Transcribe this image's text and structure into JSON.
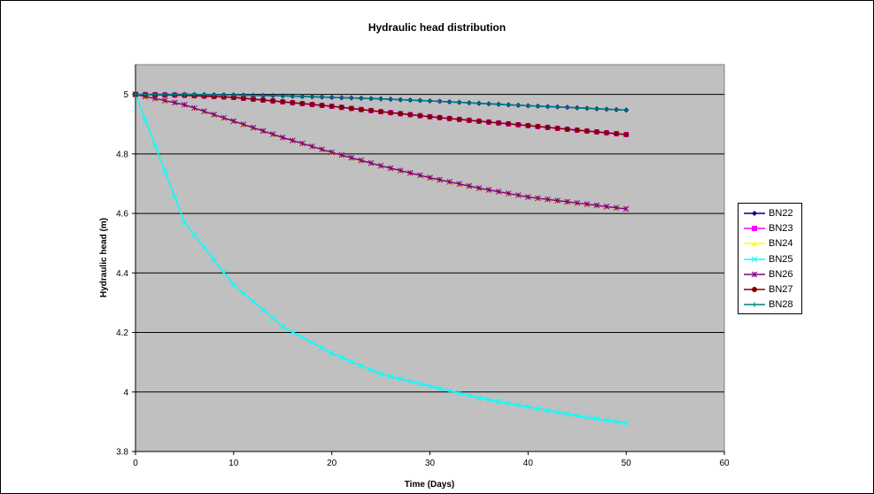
{
  "chart_data": {
    "type": "line",
    "title": "Hydraulic head distribution",
    "xlabel": "Time (Days)",
    "ylabel": "Hydraulic head (m)",
    "xlim": [
      0,
      60
    ],
    "ylim": [
      3.8,
      5.1
    ],
    "xticks": [
      0,
      10,
      20,
      30,
      40,
      50,
      60
    ],
    "yticks": [
      3.8,
      4,
      4.2,
      4.4,
      4.6,
      4.8,
      5
    ],
    "xtick_labels": [
      "0",
      "10",
      "20",
      "30",
      "40",
      "50",
      "60"
    ],
    "ytick_labels": [
      "3.8",
      "4",
      "4.2",
      "4.4",
      "4.6",
      "4.8",
      "5"
    ],
    "grid": "horizontal",
    "plot_background": "#c0c0c0",
    "legend_position": "right",
    "x": [
      0,
      5,
      10,
      15,
      20,
      25,
      30,
      35,
      40,
      45,
      50
    ],
    "series": [
      {
        "name": "BN22",
        "color": "#000080",
        "marker": "diamond",
        "values": [
          5.0,
          5.0,
          4.998,
          4.995,
          4.99,
          4.985,
          4.978,
          4.97,
          4.962,
          4.955,
          4.947
        ]
      },
      {
        "name": "BN23",
        "color": "#ff00ff",
        "marker": "square",
        "values": [
          5.0,
          4.997,
          4.99,
          4.975,
          4.96,
          4.942,
          4.925,
          4.91,
          4.895,
          4.88,
          4.865
        ]
      },
      {
        "name": "BN24",
        "color": "#ffff00",
        "marker": "triangle",
        "values": [
          5.0,
          4.965,
          4.91,
          4.855,
          4.805,
          4.76,
          4.72,
          4.685,
          4.655,
          4.635,
          4.615
        ]
      },
      {
        "name": "BN25",
        "color": "#00ffff",
        "marker": "x",
        "values": [
          5.0,
          4.57,
          4.36,
          4.22,
          4.13,
          4.06,
          4.02,
          3.98,
          3.95,
          3.92,
          3.895
        ]
      },
      {
        "name": "BN26",
        "color": "#800080",
        "marker": "star",
        "values": [
          5.0,
          4.965,
          4.91,
          4.855,
          4.805,
          4.76,
          4.72,
          4.685,
          4.655,
          4.635,
          4.615
        ]
      },
      {
        "name": "BN27",
        "color": "#800000",
        "marker": "circle",
        "values": [
          5.0,
          4.997,
          4.99,
          4.975,
          4.96,
          4.942,
          4.925,
          4.91,
          4.895,
          4.88,
          4.865
        ]
      },
      {
        "name": "BN28",
        "color": "#008080",
        "marker": "plus",
        "values": [
          5.0,
          5.0,
          4.998,
          4.995,
          4.99,
          4.985,
          4.978,
          4.97,
          4.962,
          4.955,
          4.947
        ]
      }
    ]
  }
}
